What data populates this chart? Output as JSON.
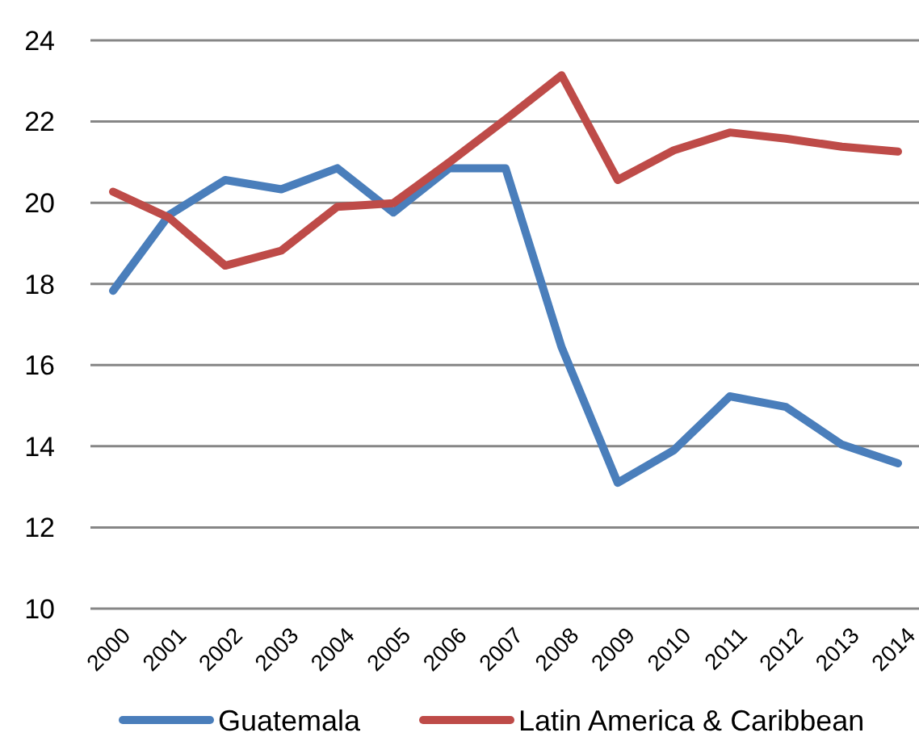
{
  "chart_data": {
    "type": "line",
    "categories": [
      "2000",
      "2001",
      "2002",
      "2003",
      "2004",
      "2005",
      "2006",
      "2007",
      "2008",
      "2009",
      "2010",
      "2011",
      "2012",
      "2013",
      "2014"
    ],
    "series": [
      {
        "name": "Guatemala",
        "color": "#4a7ebb",
        "values": [
          17.83,
          19.7,
          20.56,
          20.33,
          20.85,
          19.76,
          20.85,
          20.85,
          16.44,
          13.1,
          13.9,
          15.23,
          14.97,
          14.04,
          13.58
        ]
      },
      {
        "name": "Latin America & Caribbean",
        "color": "#be4b48",
        "values": [
          20.27,
          19.63,
          18.45,
          18.82,
          19.9,
          19.99,
          21.0,
          22.05,
          23.14,
          20.56,
          21.29,
          21.73,
          21.58,
          21.38,
          21.26
        ]
      }
    ],
    "ylim": [
      10,
      24
    ],
    "yticks": [
      10,
      12,
      14,
      16,
      18,
      20,
      22,
      24
    ],
    "grid": "y",
    "legend": "bottom",
    "marker": "none",
    "line_style": "solid"
  }
}
